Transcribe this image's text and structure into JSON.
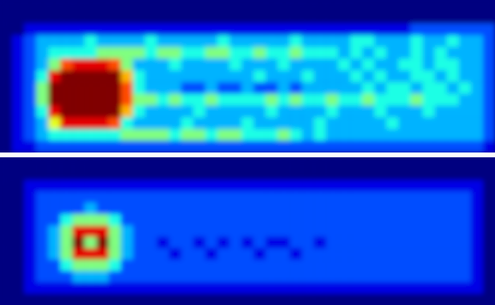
{
  "chart_data": [
    {
      "type": "heatmap",
      "xlim": [
        0,
        41
      ],
      "ylim": [
        0,
        13
      ],
      "zlim": [
        0,
        10
      ],
      "tick_labels": false,
      "z": [
        [
          0,
          0,
          0,
          0,
          0,
          0,
          0,
          0,
          0,
          0,
          0,
          0,
          0,
          0,
          0,
          0,
          0,
          0,
          0,
          0,
          0,
          0,
          0,
          0,
          0,
          0,
          0,
          0,
          0,
          0,
          0,
          0,
          0,
          0,
          0,
          0,
          0,
          0,
          0,
          0,
          0
        ],
        [
          0,
          0,
          0,
          0,
          0,
          0,
          0,
          0,
          0,
          0,
          0,
          0,
          0,
          0,
          0,
          0,
          0,
          0,
          0,
          0,
          0,
          0,
          0,
          0,
          0,
          0,
          0,
          0,
          0,
          0,
          0,
          0,
          0,
          0,
          0,
          0,
          0,
          0,
          0,
          0,
          0
        ],
        [
          0,
          0,
          1,
          1,
          1,
          1,
          1,
          1,
          1,
          1,
          1,
          1,
          1,
          1,
          1,
          1,
          1,
          1,
          1,
          1,
          1,
          1,
          1,
          1,
          1,
          1,
          1,
          1,
          1,
          1,
          1,
          1,
          1,
          1,
          2,
          2,
          2,
          2,
          2,
          2,
          2
        ],
        [
          0,
          1,
          2,
          3,
          3,
          3,
          3,
          4,
          3,
          3,
          3,
          3,
          4,
          3,
          3,
          3,
          3,
          3,
          4,
          3,
          3,
          3,
          3,
          3,
          4,
          3,
          3,
          3,
          3,
          4,
          4,
          3,
          3,
          3,
          4,
          3,
          3,
          4,
          3,
          3,
          2
        ],
        [
          0,
          1,
          2,
          3,
          4,
          4,
          4,
          4,
          5,
          5,
          5,
          5,
          4,
          5,
          5,
          4,
          4,
          5,
          5,
          4,
          4,
          5,
          4,
          4,
          5,
          4,
          4,
          4,
          3,
          4,
          3,
          4,
          3,
          3,
          4,
          3,
          4,
          3,
          3,
          3,
          2
        ],
        [
          0,
          1,
          2,
          3,
          5,
          8,
          9,
          9,
          9,
          8,
          5,
          3,
          3,
          3,
          4,
          3,
          3,
          3,
          3,
          4,
          3,
          3,
          3,
          4,
          3,
          3,
          3,
          3,
          4,
          3,
          4,
          3,
          3,
          4,
          4,
          3,
          4,
          4,
          3,
          3,
          2
        ],
        [
          0,
          1,
          2,
          4,
          9,
          10,
          10,
          10,
          10,
          10,
          7,
          4,
          3,
          3,
          3,
          3,
          3,
          3,
          3,
          3,
          3,
          4,
          3,
          3,
          3,
          4,
          3,
          3,
          3,
          4,
          3,
          4,
          3,
          3,
          4,
          4,
          3,
          4,
          3,
          3,
          2
        ],
        [
          0,
          1,
          2,
          5,
          10,
          10,
          10,
          10,
          10,
          10,
          8,
          4,
          3,
          3,
          3,
          2,
          2,
          3,
          2,
          2,
          3,
          2,
          2,
          3,
          2,
          3,
          3,
          3,
          3,
          3,
          4,
          3,
          4,
          4,
          3,
          4,
          4,
          3,
          4,
          3,
          2
        ],
        [
          0,
          1,
          2,
          5,
          10,
          10,
          10,
          10,
          10,
          10,
          8,
          5,
          5,
          4,
          5,
          4,
          4,
          5,
          4,
          4,
          4,
          4,
          5,
          4,
          5,
          4,
          4,
          5,
          4,
          4,
          5,
          4,
          4,
          4,
          5,
          4,
          4,
          4,
          3,
          3,
          2
        ],
        [
          0,
          1,
          2,
          4,
          9,
          10,
          10,
          10,
          10,
          10,
          7,
          4,
          3,
          3,
          3,
          3,
          4,
          3,
          3,
          3,
          3,
          3,
          4,
          3,
          3,
          3,
          3,
          4,
          3,
          3,
          3,
          4,
          3,
          3,
          3,
          4,
          3,
          3,
          3,
          3,
          2
        ],
        [
          0,
          1,
          2,
          3,
          6,
          9,
          9,
          9,
          9,
          8,
          4,
          3,
          3,
          3,
          3,
          4,
          3,
          3,
          3,
          3,
          4,
          3,
          3,
          3,
          3,
          3,
          4,
          3,
          3,
          3,
          3,
          3,
          4,
          3,
          3,
          3,
          3,
          3,
          3,
          3,
          2
        ],
        [
          0,
          1,
          2,
          3,
          4,
          4,
          4,
          4,
          4,
          4,
          5,
          5,
          5,
          5,
          4,
          5,
          5,
          4,
          5,
          5,
          4,
          4,
          4,
          5,
          4,
          3,
          4,
          3,
          3,
          3,
          3,
          3,
          3,
          3,
          3,
          3,
          3,
          3,
          3,
          3,
          2
        ],
        [
          0,
          1,
          1,
          2,
          2,
          2,
          2,
          2,
          2,
          2,
          2,
          2,
          2,
          2,
          2,
          2,
          2,
          2,
          2,
          2,
          2,
          2,
          2,
          2,
          2,
          2,
          2,
          2,
          2,
          2,
          2,
          2,
          2,
          2,
          2,
          2,
          2,
          2,
          2,
          2,
          1
        ]
      ]
    },
    {
      "type": "heatmap",
      "xlim": [
        0,
        41
      ],
      "ylim": [
        0,
        13
      ],
      "zlim": [
        0,
        10
      ],
      "tick_labels": false,
      "z": [
        [
          0,
          0,
          0,
          0,
          0,
          0,
          0,
          0,
          0,
          0,
          0,
          0,
          0,
          0,
          0,
          0,
          0,
          0,
          0,
          0,
          0,
          0,
          0,
          0,
          0,
          0,
          0,
          0,
          0,
          0,
          0,
          0,
          0,
          0,
          0,
          0,
          0,
          0,
          0,
          0,
          0
        ],
        [
          0,
          0,
          0,
          0,
          0,
          0,
          0,
          0,
          0,
          0,
          0,
          0,
          0,
          0,
          0,
          0,
          0,
          0,
          0,
          0,
          0,
          0,
          0,
          0,
          0,
          0,
          0,
          0,
          0,
          0,
          0,
          0,
          0,
          0,
          0,
          0,
          0,
          0,
          0,
          0,
          0
        ],
        [
          0,
          0,
          1,
          1,
          1,
          1,
          1,
          1,
          1,
          1,
          1,
          1,
          1,
          1,
          1,
          1,
          1,
          1,
          1,
          1,
          1,
          1,
          1,
          1,
          1,
          1,
          1,
          1,
          1,
          1,
          1,
          1,
          1,
          1,
          1,
          1,
          1,
          1,
          1,
          1,
          0
        ],
        [
          0,
          0,
          1,
          2,
          2,
          2,
          2,
          2,
          2,
          2,
          2,
          2,
          2,
          2,
          2,
          2,
          2,
          2,
          2,
          2,
          2,
          2,
          2,
          2,
          2,
          2,
          2,
          2,
          2,
          2,
          2,
          2,
          2,
          2,
          2,
          2,
          2,
          2,
          2,
          1,
          0
        ],
        [
          0,
          0,
          1,
          2,
          2,
          2,
          2,
          3,
          2,
          2,
          2,
          2,
          2,
          2,
          2,
          2,
          2,
          2,
          2,
          2,
          2,
          2,
          2,
          2,
          2,
          2,
          2,
          2,
          2,
          2,
          2,
          2,
          2,
          2,
          2,
          2,
          2,
          2,
          2,
          1,
          0
        ],
        [
          0,
          0,
          1,
          2,
          2,
          4,
          5,
          5,
          5,
          4,
          2,
          2,
          2,
          2,
          2,
          2,
          2,
          2,
          2,
          2,
          2,
          2,
          2,
          2,
          2,
          2,
          2,
          2,
          2,
          2,
          2,
          2,
          2,
          2,
          2,
          2,
          2,
          2,
          2,
          1,
          0
        ],
        [
          0,
          0,
          1,
          2,
          3,
          5,
          9,
          9,
          9,
          5,
          3,
          2,
          2,
          2,
          2,
          2,
          2,
          2,
          2,
          2,
          2,
          2,
          2,
          2,
          2,
          2,
          2,
          2,
          2,
          2,
          2,
          2,
          2,
          2,
          2,
          2,
          2,
          2,
          2,
          1,
          0
        ],
        [
          0,
          0,
          1,
          2,
          3,
          5,
          10,
          5,
          10,
          5,
          3,
          2,
          2,
          1,
          2,
          2,
          1,
          2,
          1,
          2,
          1,
          2,
          1,
          1,
          2,
          2,
          1,
          2,
          2,
          2,
          2,
          2,
          2,
          2,
          2,
          2,
          2,
          2,
          2,
          1,
          0
        ],
        [
          0,
          0,
          1,
          2,
          3,
          5,
          9,
          9,
          9,
          5,
          3,
          2,
          2,
          2,
          1,
          2,
          2,
          1,
          2,
          2,
          2,
          1,
          2,
          2,
          1,
          2,
          2,
          2,
          2,
          2,
          2,
          2,
          2,
          2,
          2,
          2,
          2,
          2,
          2,
          1,
          0
        ],
        [
          0,
          0,
          1,
          2,
          2,
          4,
          5,
          5,
          5,
          4,
          2,
          2,
          2,
          2,
          2,
          2,
          2,
          2,
          2,
          2,
          2,
          2,
          2,
          2,
          2,
          2,
          2,
          2,
          2,
          2,
          2,
          2,
          2,
          2,
          2,
          2,
          2,
          2,
          2,
          1,
          0
        ],
        [
          0,
          0,
          1,
          2,
          2,
          2,
          3,
          3,
          3,
          2,
          2,
          2,
          2,
          2,
          2,
          2,
          2,
          2,
          2,
          2,
          2,
          2,
          2,
          2,
          2,
          2,
          2,
          2,
          2,
          2,
          2,
          2,
          2,
          2,
          2,
          2,
          2,
          2,
          2,
          1,
          0
        ],
        [
          0,
          0,
          1,
          1,
          1,
          1,
          1,
          1,
          1,
          1,
          1,
          1,
          1,
          1,
          1,
          1,
          1,
          1,
          1,
          1,
          1,
          1,
          1,
          1,
          1,
          1,
          1,
          1,
          1,
          1,
          1,
          1,
          1,
          1,
          1,
          1,
          1,
          1,
          1,
          1,
          0
        ],
        [
          0,
          0,
          0,
          0,
          0,
          0,
          0,
          0,
          0,
          0,
          0,
          0,
          0,
          0,
          0,
          0,
          0,
          0,
          0,
          0,
          0,
          0,
          0,
          0,
          0,
          0,
          0,
          0,
          0,
          0,
          0,
          0,
          0,
          0,
          0,
          0,
          0,
          0,
          0,
          0,
          0
        ]
      ]
    }
  ]
}
